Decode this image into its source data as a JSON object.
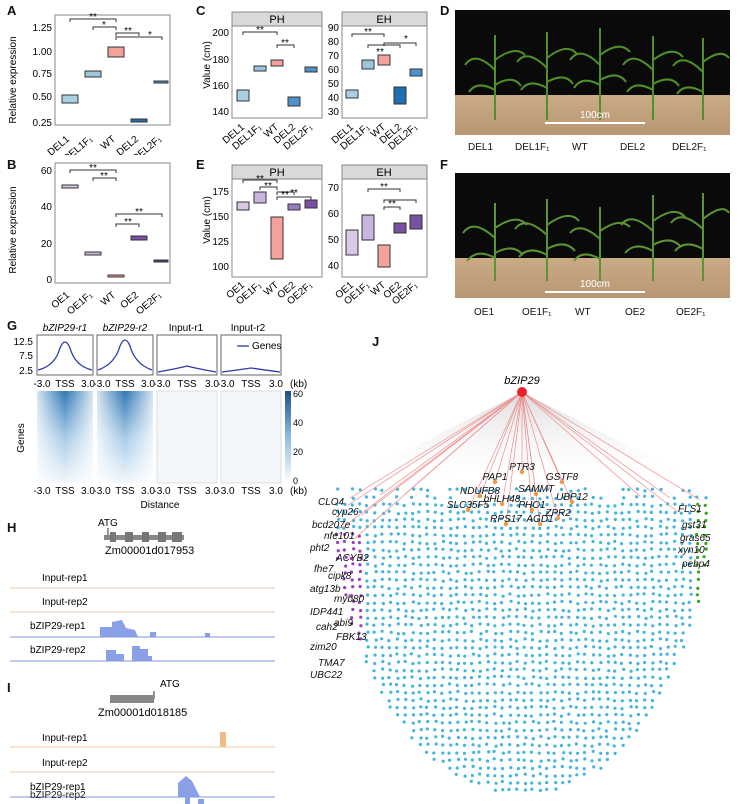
{
  "panels": [
    "A",
    "B",
    "C",
    "D",
    "E",
    "F",
    "G",
    "H",
    "I",
    "J"
  ],
  "panelA": {
    "ylabel": "Relative expression",
    "categories": [
      "DEL1",
      "DEL1F₁",
      "WT",
      "DEL2",
      "DEL2F₁"
    ],
    "yticks": [
      "0.25",
      "0.50",
      "0.75",
      "1.00",
      "1.25"
    ],
    "sig": [
      "**",
      "*",
      "**",
      "*"
    ]
  },
  "panelB": {
    "ylabel": "Relative expression",
    "categories": [
      "OE1",
      "OE1F₁",
      "WT",
      "OE2",
      "OE2F₁"
    ],
    "yticks": [
      "0",
      "20",
      "40",
      "60"
    ],
    "sig": [
      "**",
      "**",
      "**",
      "**"
    ]
  },
  "panelC": {
    "ylabel": "Value (cm)",
    "facets": [
      "PH",
      "EH"
    ],
    "categories": [
      "DEL1",
      "DEL1F₁",
      "WT",
      "DEL2",
      "DEL2F₁"
    ],
    "yticks_ph": [
      "140",
      "160",
      "180",
      "200"
    ],
    "yticks_eh": [
      "30",
      "40",
      "50",
      "60",
      "70",
      "80",
      "90"
    ],
    "sig_ph": [
      "**",
      "**"
    ],
    "sig_eh": [
      "**",
      "**",
      "*"
    ]
  },
  "panelD": {
    "scale": "100cm",
    "labels": [
      "DEL1",
      "DEL1F₁",
      "WT",
      "DEL2",
      "DEL2F₁"
    ]
  },
  "panelE": {
    "ylabel": "Value (cm)",
    "facets": [
      "PH",
      "EH"
    ],
    "categories": [
      "OE1",
      "OE1F₁",
      "WT",
      "OE2",
      "OE2F₁"
    ],
    "yticks_ph": [
      "100",
      "125",
      "150",
      "175"
    ],
    "yticks_eh": [
      "40",
      "50",
      "60",
      "70"
    ],
    "sig_ph": [
      "**",
      "**",
      "**",
      "**"
    ],
    "sig_eh": [
      "**",
      "**"
    ]
  },
  "panelF": {
    "scale": "100cm",
    "labels": [
      "OE1",
      "OE1F₁",
      "WT",
      "OE2",
      "OE2F₁"
    ]
  },
  "panelG": {
    "titles": [
      "bZIP29-r1",
      "bZIP29-r2",
      "Input-r1",
      "Input-r2"
    ],
    "legend": "Genes",
    "profile_yticks": [
      "2.5",
      "7.5",
      "12.5"
    ],
    "xtick_left": "-3.0",
    "xtick_mid": "TSS",
    "xtick_right": "3.0",
    "unit": "(kb)",
    "ylabel": "Genes",
    "xlabel": "Distance",
    "colorbar_ticks": [
      "0",
      "20",
      "40",
      "60"
    ]
  },
  "panelH": {
    "atg": "ATG",
    "gene": "Zm00001d017953",
    "tracks": [
      "Input-rep1",
      "Input-rep2",
      "bZIP29-rep1",
      "bZIP29-rep2"
    ]
  },
  "panelI": {
    "atg": "ATG",
    "gene": "Zm00001d018185",
    "tracks": [
      "Input-rep1",
      "Input-rep2",
      "bZIP29-rep1",
      "bZIP29-rep2"
    ]
  },
  "panelJ": {
    "hub": "bZIP29",
    "orange_genes": [
      "PTR3",
      "PAP1",
      "GSTF8",
      "NDUFB8",
      "SAMMT",
      "UBP12",
      "bHLH48",
      "PHO1",
      "SLC35F5",
      "ZPR2",
      "RPS17",
      "AGD1"
    ],
    "purple_genes": [
      "CLO4",
      "cyp26",
      "bcd207e",
      "nfe101",
      "pht2",
      "ACYB2",
      "fhe7",
      "cipk8",
      "atg13b",
      "myb80",
      "IDP441",
      "abi9",
      "cah2",
      "FBK13",
      "zim20",
      "TMA7",
      "UBC22"
    ],
    "green_genes": [
      "FLS1",
      "gst31",
      "gras65",
      "xyn10",
      "pebp4"
    ],
    "colors": {
      "hub": "#e8222b",
      "orange": "#f39a37",
      "purple": "#9b3fc2",
      "green": "#3aa31a",
      "blue": "#44b5e0",
      "edge": "#f08c8c"
    }
  },
  "colors": {
    "del_light": "#a9cfe3",
    "del_mid": "#4d92c8",
    "del_dark": "#1f6fb0",
    "wt": "#f4a09b",
    "oe_light": "#d8c8e6",
    "oe_mid": "#b89bd1",
    "oe_dark": "#7a4fa6",
    "strip": "#d9d9d9",
    "heat": "#2f78b5"
  }
}
